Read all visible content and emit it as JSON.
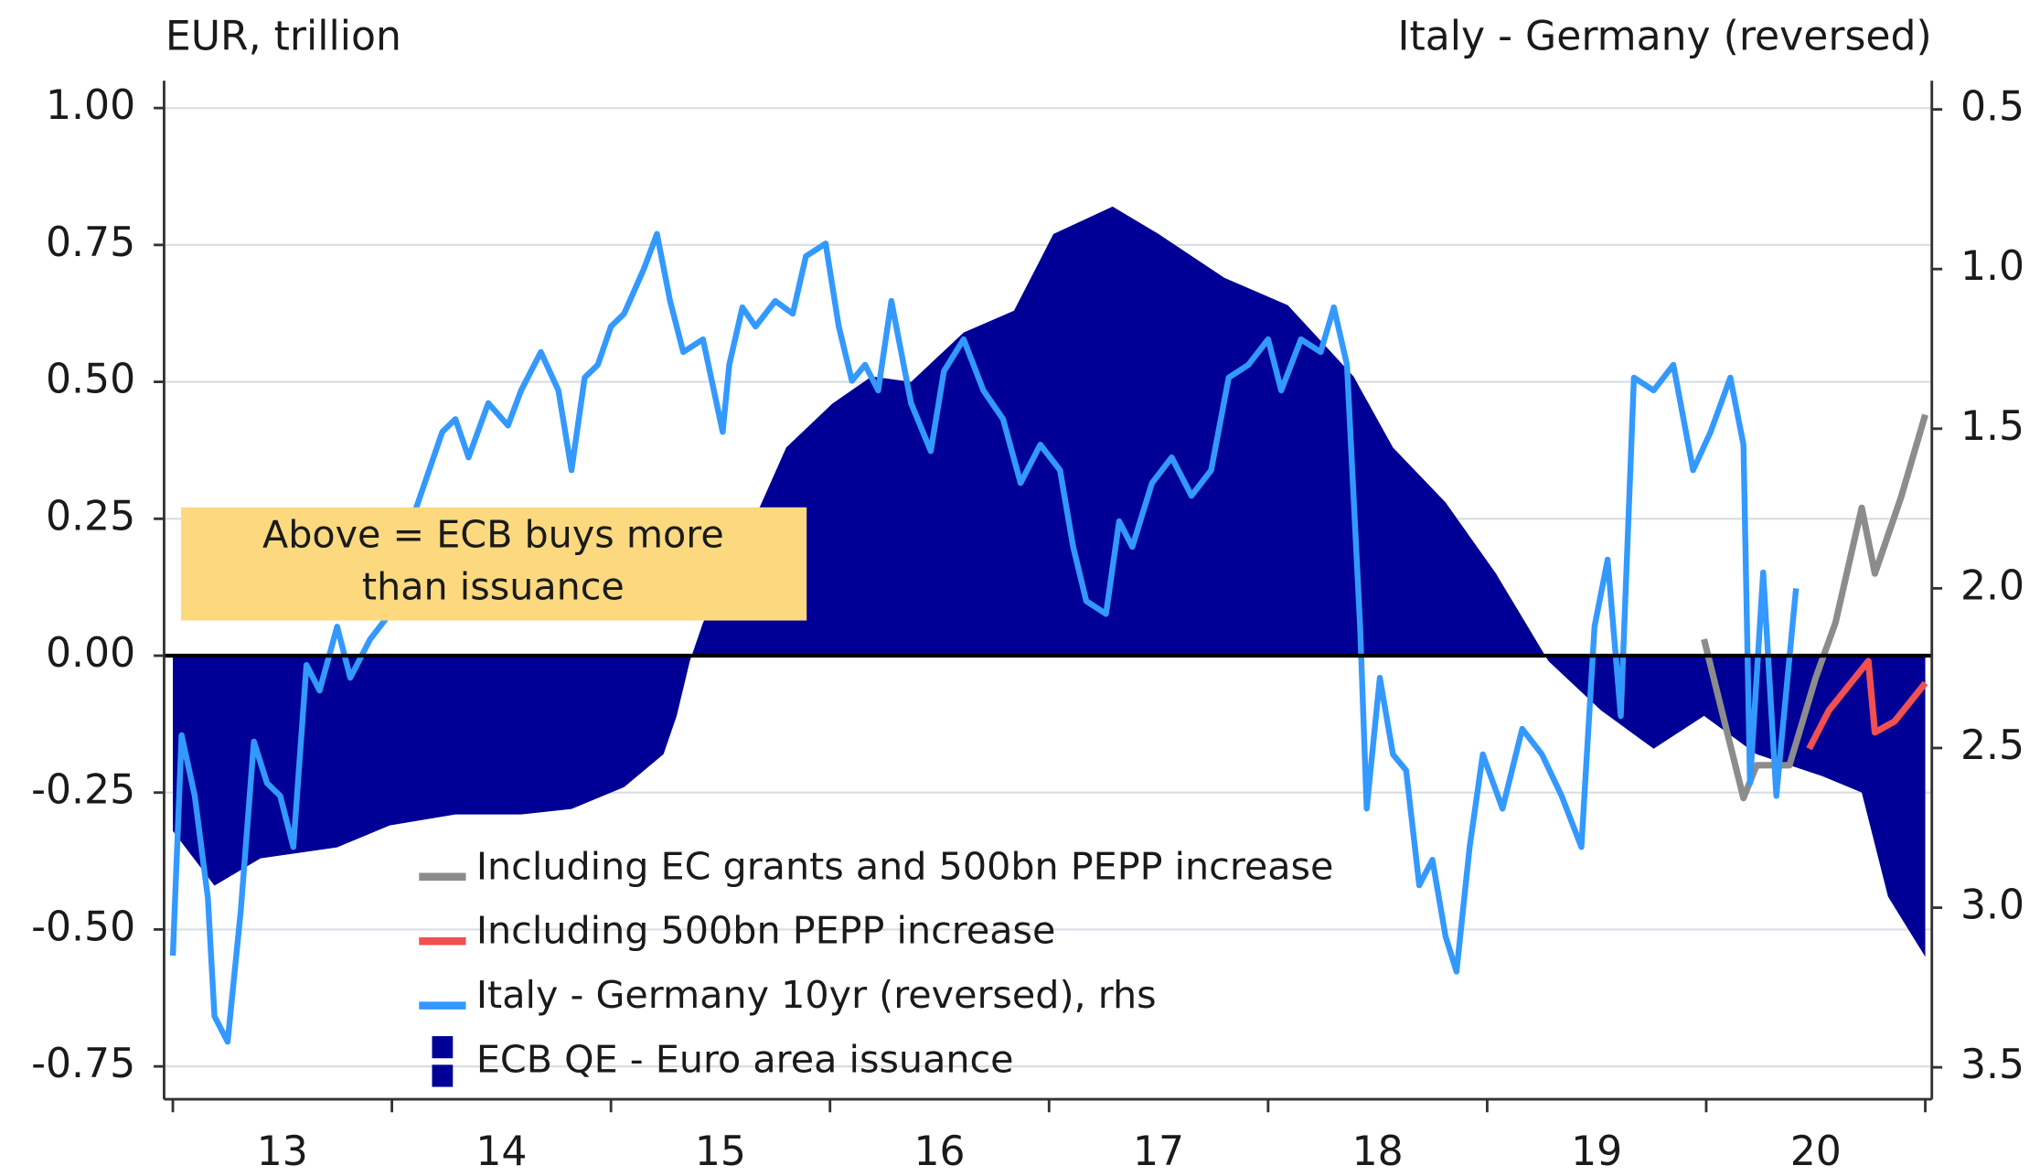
{
  "chart_data": {
    "type": "line",
    "y_label": "EUR, trillion",
    "y2_label": "Italy - Germany (reversed)",
    "annotation": {
      "lines": [
        "Above = ECB buys more",
        "than issuance"
      ]
    },
    "xlim": [
      2012.96,
      2021.03
    ],
    "xticks": [
      2013,
      2014,
      2015,
      2016,
      2017,
      2018,
      2019,
      2020,
      2021
    ],
    "x_labels": [
      {
        "value": 2013.5,
        "label": "13"
      },
      {
        "value": 2014.5,
        "label": "14"
      },
      {
        "value": 2015.5,
        "label": "15"
      },
      {
        "value": 2016.5,
        "label": "16"
      },
      {
        "value": 2017.5,
        "label": "17"
      },
      {
        "value": 2018.5,
        "label": "18"
      },
      {
        "value": 2019.5,
        "label": "19"
      },
      {
        "value": 2020.5,
        "label": "20"
      }
    ],
    "ylim": [
      -0.81,
      1.05
    ],
    "yticks": [
      {
        "value": 1.0,
        "label": "1.00"
      },
      {
        "value": 0.75,
        "label": "0.75"
      },
      {
        "value": 0.5,
        "label": "0.50"
      },
      {
        "value": 0.25,
        "label": "0.25"
      },
      {
        "value": 0,
        "label": "0.00"
      },
      {
        "value": -0.25,
        "label": "-0.25"
      },
      {
        "value": -0.5,
        "label": "-0.50"
      },
      {
        "value": -0.75,
        "label": "-0.75"
      }
    ],
    "y2lim": [
      3.6,
      0.41
    ],
    "y2ticks": [
      0.5,
      {
        "value": 1.0,
        "label": "1.0"
      },
      1.5,
      {
        "value": 2.0,
        "label": "2.0"
      },
      2.5,
      {
        "value": 3.0,
        "label": "3.0"
      },
      3.5
    ],
    "grid": true,
    "series": [
      {
        "name": "Including EC grants and 500bn PEPP increase",
        "color": "#8c8c8c",
        "style": "line",
        "axis": "y",
        "x": [
          2019.99,
          2020.17,
          2020.23,
          2020.38,
          2020.5,
          2020.59,
          2020.71,
          2020.77,
          2020.89,
          2021.0
        ],
        "values": [
          0.03,
          -0.26,
          -0.2,
          -0.2,
          -0.04,
          0.06,
          0.27,
          0.15,
          0.29,
          0.44
        ]
      },
      {
        "name": "Including 500bn PEPP increase",
        "color": "#f05050",
        "style": "line",
        "axis": "y",
        "x": [
          2020.47,
          2020.56,
          2020.68,
          2020.74,
          2020.77,
          2020.86,
          2021.0
        ],
        "values": [
          -0.17,
          -0.1,
          -0.04,
          -0.01,
          -0.14,
          -0.12,
          -0.05
        ]
      },
      {
        "name": "Italy - Germany 10yr (reversed), rhs",
        "color": "#3399ff",
        "style": "line",
        "axis": "y2",
        "x": [
          2013.0,
          2013.04,
          2013.1,
          2013.16,
          2013.19,
          2013.25,
          2013.31,
          2013.37,
          2013.43,
          2013.49,
          2013.55,
          2013.61,
          2013.67,
          2013.75,
          2013.81,
          2013.9,
          2013.99,
          2014.05,
          2014.14,
          2014.23,
          2014.29,
          2014.35,
          2014.44,
          2014.53,
          2014.59,
          2014.68,
          2014.76,
          2014.82,
          2014.88,
          2014.94,
          2015.0,
          2015.06,
          2015.15,
          2015.21,
          2015.27,
          2015.33,
          2015.42,
          2015.51,
          2015.54,
          2015.6,
          2015.66,
          2015.75,
          2015.83,
          2015.89,
          2015.98,
          2016.04,
          2016.1,
          2016.16,
          2016.22,
          2016.28,
          2016.37,
          2016.46,
          2016.52,
          2016.61,
          2016.7,
          2016.79,
          2016.87,
          2016.96,
          2017.05,
          2017.11,
          2017.17,
          2017.26,
          2017.32,
          2017.38,
          2017.47,
          2017.56,
          2017.65,
          2017.74,
          2017.82,
          2017.91,
          2018.0,
          2018.06,
          2018.15,
          2018.24,
          2018.3,
          2018.36,
          2018.42,
          2018.45,
          2018.51,
          2018.57,
          2018.63,
          2018.69,
          2018.75,
          2018.81,
          2018.86,
          2018.92,
          2018.98,
          2019.07,
          2019.16,
          2019.25,
          2019.34,
          2019.43,
          2019.49,
          2019.55,
          2019.61,
          2019.67,
          2019.76,
          2019.85,
          2019.94,
          2020.02,
          2020.11,
          2020.17,
          2020.2,
          2020.26,
          2020.32,
          2020.41
        ],
        "values": [
          3.15,
          2.46,
          2.65,
          2.97,
          3.34,
          3.42,
          3.01,
          2.48,
          2.61,
          2.65,
          2.81,
          2.24,
          2.32,
          2.12,
          2.28,
          2.16,
          2.08,
          1.87,
          1.69,
          1.51,
          1.47,
          1.59,
          1.42,
          1.49,
          1.38,
          1.26,
          1.38,
          1.63,
          1.34,
          1.3,
          1.18,
          1.14,
          1.0,
          0.89,
          1.1,
          1.26,
          1.22,
          1.51,
          1.3,
          1.12,
          1.18,
          1.1,
          1.14,
          0.96,
          0.92,
          1.18,
          1.35,
          1.3,
          1.38,
          1.1,
          1.42,
          1.57,
          1.32,
          1.22,
          1.38,
          1.47,
          1.67,
          1.55,
          1.63,
          1.87,
          2.04,
          2.08,
          1.79,
          1.87,
          1.67,
          1.59,
          1.71,
          1.63,
          1.34,
          1.3,
          1.22,
          1.38,
          1.22,
          1.26,
          1.12,
          1.3,
          2.12,
          2.69,
          2.28,
          2.52,
          2.57,
          2.93,
          2.85,
          3.09,
          3.2,
          2.81,
          2.52,
          2.69,
          2.44,
          2.52,
          2.65,
          2.81,
          2.12,
          1.91,
          2.4,
          1.34,
          1.38,
          1.3,
          1.63,
          1.51,
          1.34,
          1.55,
          2.61,
          1.95,
          2.65,
          2.0
        ]
      },
      {
        "name": "ECB QE - Euro area issuance",
        "color": "#000096",
        "style": "area",
        "axis": "y",
        "x": [
          2013.0,
          2013.19,
          2013.4,
          2013.75,
          2013.99,
          2014.29,
          2014.59,
          2014.82,
          2015.06,
          2015.24,
          2015.3,
          2015.36,
          2015.42,
          2015.6,
          2015.8,
          2016.01,
          2016.19,
          2016.37,
          2016.61,
          2016.84,
          2017.02,
          2017.29,
          2017.5,
          2017.8,
          2018.09,
          2018.39,
          2018.57,
          2018.81,
          2019.04,
          2019.28,
          2019.52,
          2019.76,
          2019.99,
          2020.23,
          2020.53,
          2020.71,
          2020.83,
          2021.0
        ],
        "values": [
          -0.32,
          -0.42,
          -0.37,
          -0.35,
          -0.31,
          -0.29,
          -0.29,
          -0.28,
          -0.24,
          -0.18,
          -0.11,
          -0.01,
          0.06,
          0.2,
          0.38,
          0.46,
          0.51,
          0.5,
          0.59,
          0.63,
          0.77,
          0.82,
          0.77,
          0.69,
          0.64,
          0.51,
          0.38,
          0.28,
          0.15,
          -0.01,
          -0.1,
          -0.17,
          -0.11,
          -0.18,
          -0.22,
          -0.25,
          -0.44,
          -0.55
        ]
      }
    ]
  }
}
